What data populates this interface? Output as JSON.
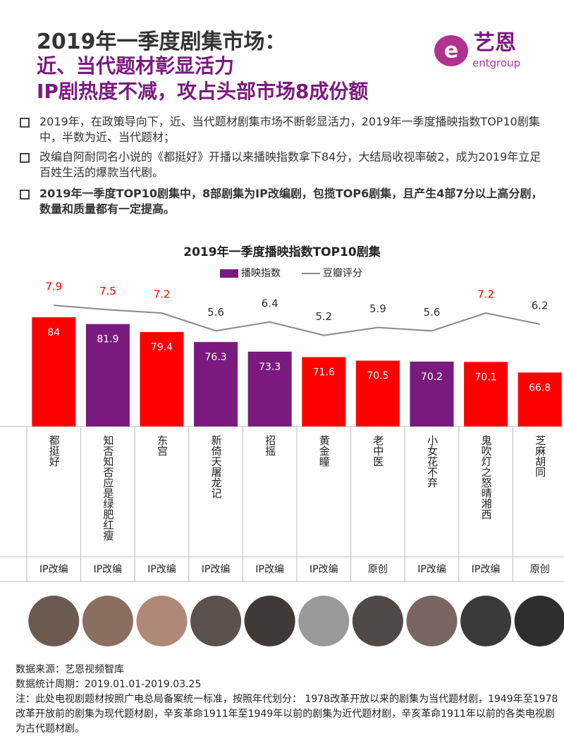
{
  "header": {
    "title": "2019年一季度剧集市场：",
    "subtitle_lines": [
      "近、当代题材彰显活力",
      "IP剧热度不减，攻占头部市场8成份额"
    ],
    "logo_cn": "艺恩",
    "logo_en": "entgroup"
  },
  "bullets": [
    "2019年，在政策导向下，近、当代题材剧集市场不断彰显活力，2019年一季度播映指数TOP10剧集中，半数为近、当代题材；",
    "改编自阿耐同名小说的《都挺好》开播以来播映指数拿下84分，大结局收视率破2，成为2019年立足百姓生活的爆款当代剧。",
    "2019年一季度TOP10剧集中，8部剧集为IP改编剧，包揽TOP6剧集，且产生4部7分以上高分剧，数量和质量都有一定提高。"
  ],
  "chart_data": {
    "type": "bar",
    "title": "2019年一季度播映指数TOP10剧集",
    "categories": [
      "都挺好",
      "知否知否应是绿肥红瘦",
      "东宫",
      "新倚天屠龙记",
      "招摇",
      "黄金瞳",
      "老中医",
      "小女花不弃",
      "鬼吹灯之怒晴湘西",
      "芝麻胡同"
    ],
    "source_types": [
      "IP改编",
      "IP改编",
      "IP改编",
      "IP改编",
      "IP改编",
      "IP改编",
      "原创",
      "IP改编",
      "IP改编",
      "原创"
    ],
    "series": [
      {
        "name": "播映指数",
        "type": "bar",
        "color": "#7a1a7e",
        "colors": [
          "#ff0000",
          "#7a1a7e",
          "#ff0000",
          "#7a1a7e",
          "#7a1a7e",
          "#ff0000",
          "#ff0000",
          "#7a1a7e",
          "#ff0000",
          "#ff0000"
        ],
        "values": [
          84,
          81.9,
          79.4,
          76.3,
          73.3,
          71.6,
          70.5,
          70.2,
          70.1,
          66.8
        ]
      },
      {
        "name": "豆瓣评分",
        "type": "line",
        "axis": "y2",
        "color": "#888888",
        "label_colors": [
          "#ff0000",
          "#ff0000",
          "#ff0000",
          "#333333",
          "#333333",
          "#333333",
          "#333333",
          "#333333",
          "#ff0000",
          "#333333"
        ],
        "values": [
          7.9,
          7.5,
          7.2,
          5.6,
          6.4,
          5.2,
          5.9,
          5.6,
          7.2,
          6.2
        ]
      }
    ],
    "ylim": [
      50,
      95
    ],
    "y2lim": [
      -3,
      10
    ],
    "legend": "top"
  },
  "footer": {
    "source": "数据来源：艺恩视频智库",
    "period": "数据统计周期：2019.01.01-2019.03.25",
    "note": "注：此处电视剧题材按照广电总局备案统一标准，按照年代划分： 1978改革开放以来的剧集为当代题材剧，1949年至1978改革开放前的剧集为现代题材剧，辛亥革命1911年至1949年以前的剧集为近代题材剧，辛亥革命1911年以前的各类电视剧为古代题材剧。"
  }
}
